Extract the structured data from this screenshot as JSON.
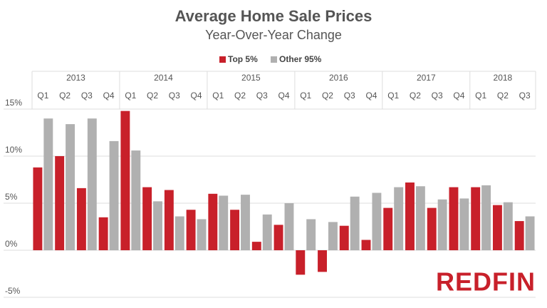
{
  "chart_data": {
    "type": "bar",
    "title": "Average Home Sale Prices",
    "subtitle": "Year-Over-Year Change",
    "groups": [
      {
        "name": "2013",
        "categories": [
          "Q1",
          "Q2",
          "Q3",
          "Q4"
        ]
      },
      {
        "name": "2014",
        "categories": [
          "Q1",
          "Q2",
          "Q3",
          "Q4"
        ]
      },
      {
        "name": "2015",
        "categories": [
          "Q1",
          "Q2",
          "Q3",
          "Q4"
        ]
      },
      {
        "name": "2016",
        "categories": [
          "Q1",
          "Q2",
          "Q3",
          "Q4"
        ]
      },
      {
        "name": "2017",
        "categories": [
          "Q1",
          "Q2",
          "Q3",
          "Q4"
        ]
      },
      {
        "name": "2018",
        "categories": [
          "Q1",
          "Q2",
          "Q3"
        ]
      }
    ],
    "series": [
      {
        "name": "Top 5%",
        "color": "#c8202a",
        "values": [
          8.8,
          10.0,
          6.6,
          3.5,
          14.8,
          6.7,
          6.4,
          4.3,
          6.0,
          4.3,
          0.9,
          2.7,
          -2.6,
          -2.3,
          2.6,
          1.1,
          4.5,
          7.2,
          4.5,
          6.7,
          6.7,
          4.8,
          3.1
        ]
      },
      {
        "name": "Other 95%",
        "color": "#b0b0b0",
        "values": [
          14.0,
          13.4,
          14.0,
          11.6,
          10.6,
          5.2,
          3.6,
          3.3,
          5.8,
          5.9,
          3.8,
          5.0,
          3.3,
          3.0,
          5.7,
          6.1,
          6.7,
          6.8,
          5.4,
          5.5,
          6.9,
          5.1,
          3.6
        ]
      }
    ],
    "ylim": [
      -5,
      15
    ],
    "yticks": [
      {
        "value": -5,
        "label": "-5%"
      },
      {
        "value": 0,
        "label": "0%"
      },
      {
        "value": 5,
        "label": "5%"
      },
      {
        "value": 10,
        "label": "10%"
      },
      {
        "value": 15,
        "label": "15%"
      }
    ],
    "grid": true,
    "logo": "REDFIN"
  }
}
